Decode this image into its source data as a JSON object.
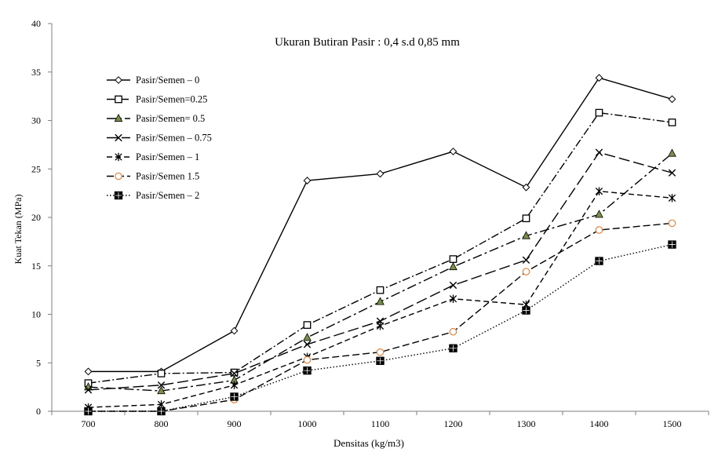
{
  "chart_data": {
    "type": "line",
    "title": "Ukuran Butiran Pasir :  0,4 s.d 0,85 mm",
    "xlabel": "Densitas (kg/m3)",
    "ylabel": "Kuat Tekan (MPa)",
    "categories": [
      "700",
      "800",
      "900",
      "1000",
      "1100",
      "1200",
      "1300",
      "1400",
      "1500"
    ],
    "ylim": [
      0,
      40
    ],
    "yticks": [
      "0",
      "5",
      "10",
      "15",
      "20",
      "25",
      "30",
      "35",
      "40"
    ],
    "grid": false,
    "legend_position": "top-left",
    "series": [
      {
        "name": "Pasir/Semen – 0",
        "values": [
          4.1,
          4.1,
          8.3,
          23.8,
          24.5,
          26.8,
          23.1,
          34.4,
          32.2
        ],
        "marker": "diamond",
        "dash": ""
      },
      {
        "name": "Pasir/Semen=0.25",
        "values": [
          2.9,
          3.9,
          4.0,
          8.9,
          12.5,
          15.7,
          19.9,
          30.8,
          29.8
        ],
        "marker": "square-open",
        "dash": "10,3,2,3"
      },
      {
        "name": "Pasir/Semen= 0.5",
        "values": [
          2.5,
          2.1,
          3.2,
          7.6,
          11.3,
          14.9,
          18.1,
          20.3,
          26.6
        ],
        "marker": "triangle",
        "dash": "12,4,3,4"
      },
      {
        "name": "Pasir/Semen – 0.75",
        "values": [
          2.2,
          2.7,
          3.9,
          6.9,
          9.3,
          13.0,
          15.6,
          26.7,
          24.6
        ],
        "marker": "x",
        "dash": "14,5"
      },
      {
        "name": "Pasir/Semen – 1",
        "values": [
          0.4,
          0.7,
          2.7,
          5.6,
          8.8,
          11.6,
          11.0,
          22.7,
          22.0
        ],
        "marker": "star",
        "dash": "7,4"
      },
      {
        "name": "Pasir/Semen    1.5",
        "values": [
          0.0,
          0.0,
          1.2,
          5.3,
          6.1,
          8.2,
          14.4,
          18.7,
          19.4
        ],
        "marker": "circle-open",
        "dash": "9,4"
      },
      {
        "name": "Pasir/Semen – 2",
        "values": [
          0.0,
          0.0,
          1.5,
          4.2,
          5.2,
          6.5,
          10.4,
          15.5,
          17.2
        ],
        "marker": "square-filled",
        "dash": "1.5,2.5"
      }
    ]
  },
  "colors": {
    "axis": "#7f7f7f",
    "line": "#000000",
    "triangle_fill": "#7a8f4a",
    "circle_stroke": "#e8823a"
  }
}
